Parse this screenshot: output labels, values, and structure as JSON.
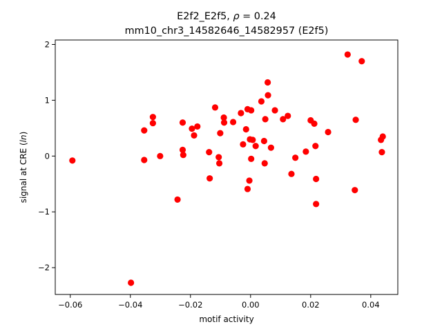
{
  "chart_data": {
    "type": "scatter",
    "title_line1_prefix": "E2f2_E2f5, ",
    "title_line1_rho": "ρ",
    "title_line1_suffix": " = 0.24",
    "title_line2": "mm10_chr3_14582646_14582957 (E2f5)",
    "xlabel": "motif activity",
    "ylabel_prefix": "signal at CRE (",
    "ylabel_italic": "ln",
    "ylabel_suffix": ")",
    "xlim": [
      -0.065,
      0.049
    ],
    "ylim": [
      -2.48,
      2.08
    ],
    "xticks": [
      -0.06,
      -0.04,
      -0.02,
      0.0,
      0.02,
      0.04
    ],
    "xtick_labels": [
      "−0.06",
      "−0.04",
      "−0.02",
      "0.00",
      "0.02",
      "0.04"
    ],
    "yticks": [
      -2,
      -1,
      0,
      1,
      2
    ],
    "ytick_labels": [
      "−2",
      "−1",
      "0",
      "1",
      "2"
    ],
    "grid": false,
    "marker_color": "#ff0000",
    "points": [
      [
        -0.0593,
        -0.08
      ],
      [
        -0.0398,
        -2.27
      ],
      [
        -0.0354,
        0.46
      ],
      [
        -0.0354,
        -0.07
      ],
      [
        -0.0325,
        0.7
      ],
      [
        -0.0325,
        0.59
      ],
      [
        -0.0301,
        0.0
      ],
      [
        -0.0243,
        -0.78
      ],
      [
        -0.0226,
        0.6
      ],
      [
        -0.0226,
        0.11
      ],
      [
        -0.0224,
        0.02
      ],
      [
        -0.0195,
        0.49
      ],
      [
        -0.0188,
        0.37
      ],
      [
        -0.0177,
        0.53
      ],
      [
        -0.0138,
        0.07
      ],
      [
        -0.0136,
        -0.4
      ],
      [
        -0.0118,
        0.87
      ],
      [
        -0.0106,
        -0.02
      ],
      [
        -0.0104,
        -0.13
      ],
      [
        -0.0101,
        0.41
      ],
      [
        -0.0089,
        0.69
      ],
      [
        -0.0088,
        0.6
      ],
      [
        -0.0058,
        0.61
      ],
      [
        -0.0032,
        0.77
      ],
      [
        -0.0025,
        0.21
      ],
      [
        -0.0015,
        0.48
      ],
      [
        -0.001,
        0.84
      ],
      [
        -0.001,
        -0.59
      ],
      [
        -0.0004,
        -0.44
      ],
      [
        -0.0002,
        0.3
      ],
      [
        0.0002,
        0.82
      ],
      [
        0.0002,
        -0.05
      ],
      [
        0.0007,
        0.29
      ],
      [
        0.0017,
        0.18
      ],
      [
        0.0036,
        0.98
      ],
      [
        0.0045,
        0.27
      ],
      [
        0.0047,
        -0.13
      ],
      [
        0.0049,
        0.66
      ],
      [
        0.0057,
        1.32
      ],
      [
        0.0058,
        1.09
      ],
      [
        0.0068,
        0.15
      ],
      [
        0.0081,
        0.82
      ],
      [
        0.0108,
        0.66
      ],
      [
        0.0124,
        0.72
      ],
      [
        0.0136,
        -0.32
      ],
      [
        0.0149,
        -0.03
      ],
      [
        0.0184,
        0.08
      ],
      [
        0.02,
        0.64
      ],
      [
        0.0212,
        0.58
      ],
      [
        0.0216,
        0.18
      ],
      [
        0.0218,
        -0.41
      ],
      [
        0.0218,
        -0.86
      ],
      [
        0.0258,
        0.43
      ],
      [
        0.0323,
        1.82
      ],
      [
        0.0347,
        -0.61
      ],
      [
        0.035,
        0.65
      ],
      [
        0.037,
        1.7
      ],
      [
        0.0434,
        0.29
      ],
      [
        0.0437,
        0.07
      ],
      [
        0.044,
        0.35
      ]
    ]
  }
}
